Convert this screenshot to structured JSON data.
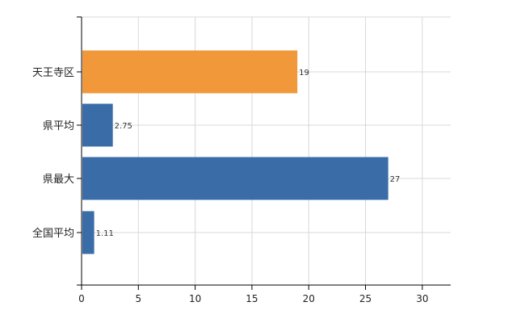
{
  "chart_data": {
    "type": "bar",
    "orientation": "horizontal",
    "categories": [
      "天王寺区",
      "県平均",
      "県最大",
      "全国平均"
    ],
    "values": [
      19,
      2.75,
      27,
      1.11
    ],
    "value_labels": [
      "19",
      "2.75",
      "27",
      "1.11"
    ],
    "bar_colors": [
      "#F0983A",
      "#3A6CA8",
      "#3A6CA8",
      "#3A6CA8"
    ],
    "xlim": [
      0,
      32.5
    ],
    "xticks": [
      0,
      5,
      10,
      15,
      20,
      25,
      30
    ],
    "xtick_labels": [
      "0",
      "5",
      "10",
      "15",
      "20",
      "25",
      "30"
    ],
    "grid": true,
    "title": "",
    "xlabel": "",
    "ylabel": ""
  },
  "colors": {
    "highlight": "#F0983A",
    "default": "#3A6CA8",
    "grid": "#d8d8d8",
    "axis": "#000000"
  }
}
